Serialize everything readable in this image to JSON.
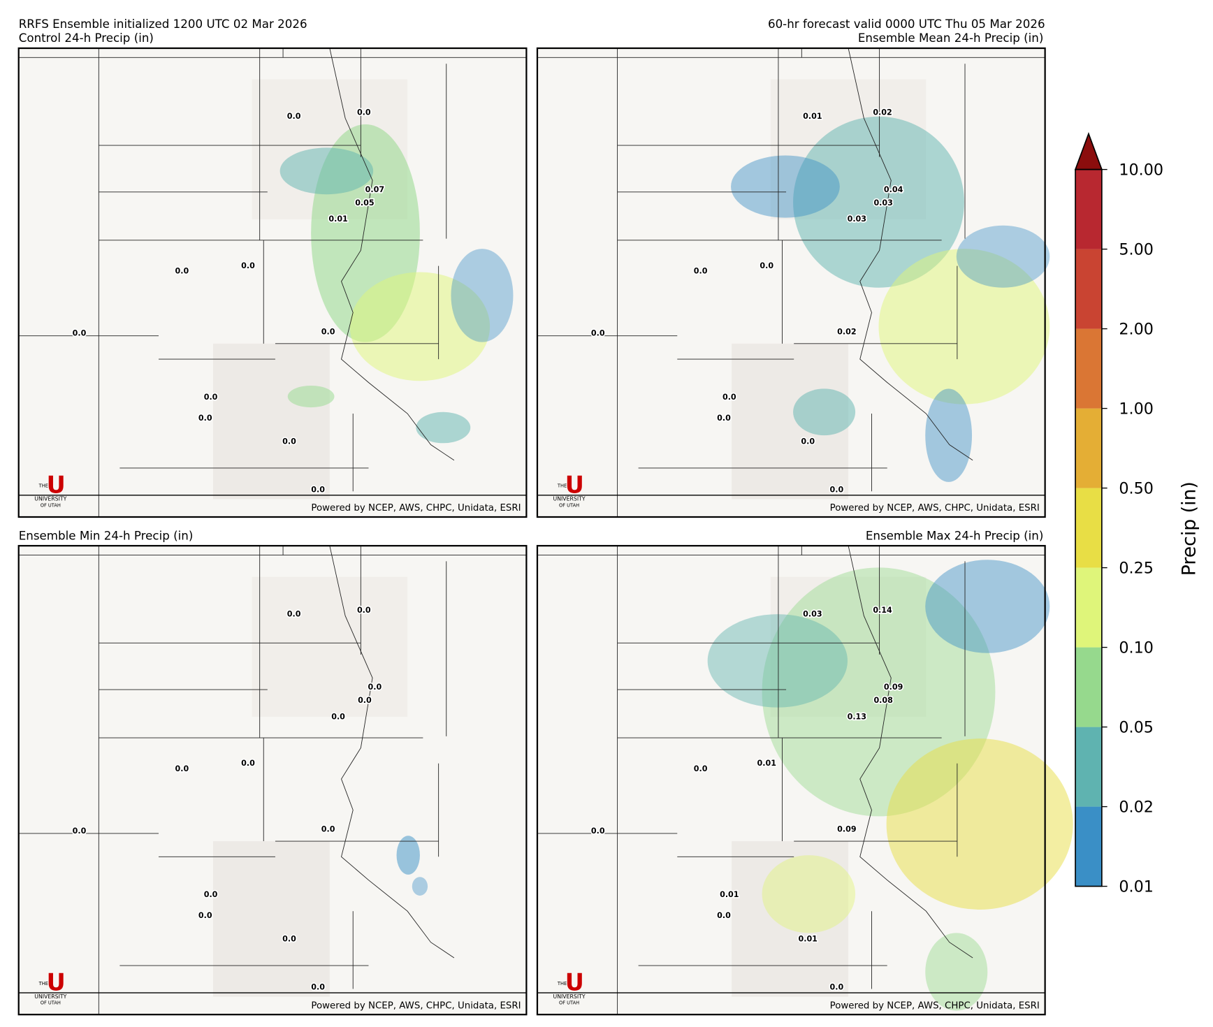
{
  "header": {
    "init": "RRFS Ensemble initialized 1200 UTC 02 Mar 2026",
    "valid": "60-hr forecast valid 0000 UTC Thu 05 Mar 2026"
  },
  "panels": [
    {
      "title": "Control 24-h Precip (in)",
      "labels": [
        "0.0",
        "0.0",
        "0.07",
        "0.05",
        "0.01",
        "0.0",
        "0.0",
        "0.0",
        "0.0",
        "0.0",
        "0.0",
        "0.0",
        "0.0"
      ],
      "credit": "Powered by NCEP, AWS, CHPC, Unidata, ESRI"
    },
    {
      "title": "Ensemble Mean 24-h Precip (in)",
      "labels": [
        "0.01",
        "0.02",
        "0.04",
        "0.03",
        "0.03",
        "0.0",
        "0.0",
        "0.0",
        "0.02",
        "0.0",
        "0.0",
        "0.0",
        "0.0"
      ],
      "credit": "Powered by NCEP, AWS, CHPC, Unidata, ESRI"
    },
    {
      "title": "Ensemble Min 24-h Precip (in)",
      "labels": [
        "0.0",
        "0.0",
        "0.0",
        "0.0",
        "0.0",
        "0.0",
        "0.0",
        "0.0",
        "0.0",
        "0.0",
        "0.0",
        "0.0",
        "0.0"
      ],
      "credit": "Powered by NCEP, AWS, CHPC, Unidata, ESRI"
    },
    {
      "title": "Ensemble Max 24-h Precip (in)",
      "labels": [
        "0.03",
        "0.14",
        "0.09",
        "0.08",
        "0.13",
        "0.0",
        "0.01",
        "0.0",
        "0.09",
        "0.01",
        "0.0",
        "0.01",
        "0.0"
      ],
      "credit": "Powered by NCEP, AWS, CHPC, Unidata, ESRI"
    }
  ],
  "logo": {
    "the": "THE",
    "name": "UNIVERSITY",
    "of": "OF UTAH",
    "letter": "U"
  },
  "colorbar": {
    "label": "Precip (in)",
    "ticks": [
      "0.01",
      "0.02",
      "0.05",
      "0.10",
      "0.25",
      "0.50",
      "1.00",
      "2.00",
      "5.00",
      "10.00"
    ],
    "colors": [
      "#3a8fc6",
      "#5fb3b0",
      "#96d98d",
      "#dff57a",
      "#e8de45",
      "#e4ae35",
      "#da7634",
      "#c94432",
      "#b82830"
    ],
    "extend_color": "#8b0d0d"
  }
}
